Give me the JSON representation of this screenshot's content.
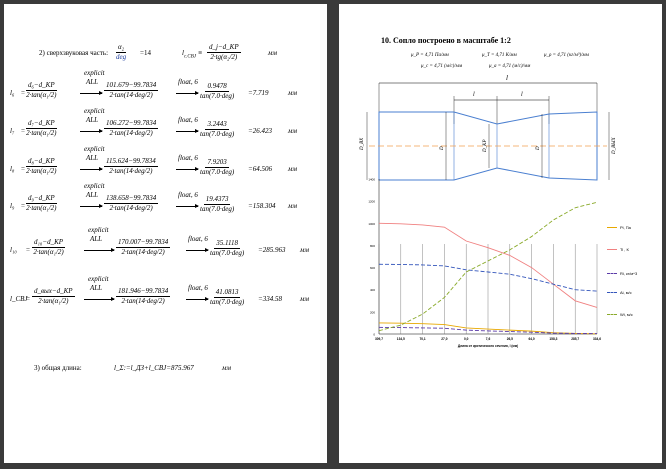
{
  "left_page": {
    "supersonic": {
      "label": "2) сверхзвуковая часть:",
      "alpha_num": "α₂",
      "alpha_den": "deg",
      "alpha_value": "=14",
      "lc_lhs": "l",
      "lc_sub": "c.CBJ",
      "lc_num": "d_j−d_KP",
      "lc_den": "2·tg(α₂/2)",
      "unit": "мм"
    },
    "rows": [
      {
        "lhs": "l₆",
        "sym_num": "d₆−d_KP",
        "calc_num": "101.679−99.7834",
        "result_num": "0.9478",
        "result_den": "tan(7.0·deg)",
        "value": "=7.719",
        "unit": "мм"
      },
      {
        "lhs": "l₇",
        "sym_num": "d₇−d_KP",
        "calc_num": "106.272−99.7834",
        "result_num": "3.2443",
        "result_den": "tan(7.0·deg)",
        "value": "=26.423",
        "unit": "мм"
      },
      {
        "lhs": "l₈",
        "sym_num": "d₈−d_KP",
        "calc_num": "115.624−99.7834",
        "result_num": "7.9203",
        "result_den": "tan(7.0·deg)",
        "value": "=64.506",
        "unit": "мм"
      },
      {
        "lhs": "l₉",
        "sym_num": "d₉−d_KP",
        "calc_num": "138.658−99.7834",
        "result_num": "19.4373",
        "result_den": "tan(7.0·deg)",
        "value": "=158.304",
        "unit": "мм"
      },
      {
        "lhs": "l₁₀",
        "sym_num": "d₁₀−d_KP",
        "calc_num": "170.007−99.7834",
        "result_num": "35.1118",
        "result_den": "tan(7.0·deg)",
        "value": "=285.963",
        "unit": "мм"
      },
      {
        "lhs": "l_CBJ",
        "sym_num": "d_вых−d_KP",
        "calc_num": "181.946−99.7834",
        "result_num": "41.0813",
        "result_den": "tan(7.0·deg)",
        "value": "=334.58",
        "unit": "мм"
      }
    ],
    "common": {
      "sym_den": "2·tan(α₁/2)",
      "calc_den": "2·tan(14·deg/2)",
      "explicit": "explicit",
      "all": "ALL",
      "float": "float, 6"
    },
    "total": {
      "label": "3) общая длина:",
      "formula": "l_Σ:=l_ДЗ+l_CBJ=875.967",
      "unit": "мм"
    }
  },
  "right_page": {
    "heading": "10. Сопло построено в масштабе 1:2",
    "params_line1": [
      "μ_P = 4,71 Па/мм",
      "μ_T = 4,71 К/мм",
      "μ_ρ = 4,71 (кг/м³)/мм"
    ],
    "params_line2": [
      "μ_c = 4,71 (м/с)/мм",
      "μ_a = 4,71 (м/с)/мм"
    ],
    "nozzle_labels": {
      "total_length": "l",
      "seg_left": "l",
      "seg_right": "l",
      "d_in": "D_BX",
      "d_mid_left": "D",
      "d_kp": "D_KP",
      "d_mid_right": "D",
      "d_out": "D_BЫX"
    },
    "chart_data": {
      "type": "line",
      "title": "",
      "xlabel": "Длина от критического сечения, l (мм)",
      "ylabel": "",
      "categories": [
        "309,7",
        "134,5",
        "70,1",
        "27,0",
        "0,0",
        "7,6",
        "26,5",
        "64,0",
        "158,3",
        "285,7",
        "334,6"
      ],
      "ylim": [
        0,
        1400
      ],
      "yticks": [
        "0",
        "200",
        "400",
        "600",
        "800",
        "1000",
        "1200",
        "1400"
      ],
      "legend_position": "right",
      "series": [
        {
          "name": "Pi, Па",
          "color": "#e8a800",
          "dash": "solid",
          "values": [
            100,
            98,
            93,
            85,
            55,
            45,
            35,
            26,
            12,
            5,
            2
          ]
        },
        {
          "name": "Ti , К",
          "color": "#f08080",
          "dash": "solid",
          "values": [
            1000,
            995,
            985,
            965,
            840,
            780,
            710,
            600,
            450,
            300,
            240
          ]
        },
        {
          "name": "Ri, кг/м^3",
          "color": "#5a3aa8",
          "dash": "dash",
          "values": [
            60,
            58,
            55,
            52,
            35,
            28,
            22,
            16,
            8,
            5,
            4
          ]
        },
        {
          "name": "Ai, м/с",
          "color": "#3355bb",
          "dash": "dash",
          "values": [
            630,
            628,
            624,
            615,
            580,
            560,
            540,
            500,
            450,
            400,
            388
          ]
        },
        {
          "name": "Wi, м/с",
          "color": "#8aaa2a",
          "dash": "dash",
          "values": [
            30,
            80,
            180,
            330,
            560,
            660,
            760,
            880,
            1030,
            1140,
            1190
          ]
        }
      ]
    }
  }
}
